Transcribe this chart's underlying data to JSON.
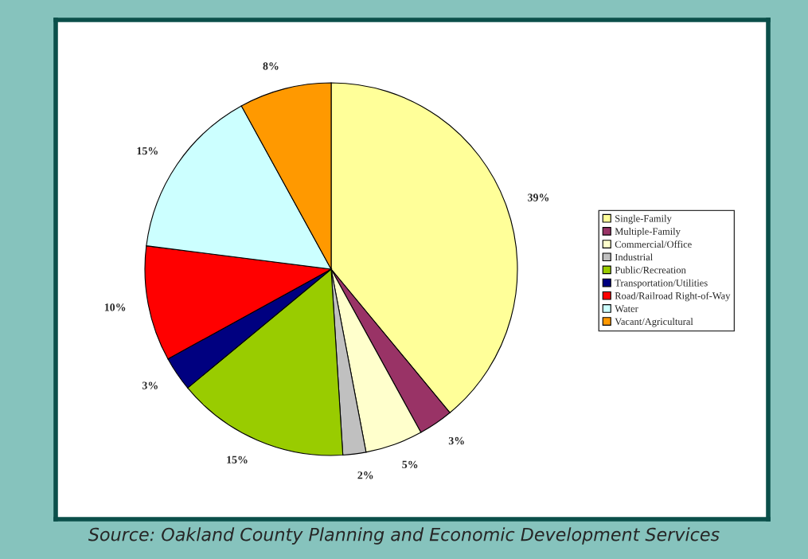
{
  "chart_data": {
    "type": "pie",
    "categories": [
      "Single-Family",
      "Multiple-Family",
      "Commercial/Office",
      "Industrial",
      "Public/Recreation",
      "Transportation/Utilities",
      "Road/Railroad Right-of-Way",
      "Water",
      "Vacant/Agricultural"
    ],
    "values": [
      39,
      3,
      5,
      2,
      15,
      3,
      10,
      15,
      8
    ],
    "colors": [
      "#ffff99",
      "#993366",
      "#ffffcc",
      "#c0c0c0",
      "#99cc00",
      "#000080",
      "#ff0000",
      "#ccffff",
      "#ff9900"
    ],
    "value_labels": [
      "39%",
      "3%",
      "5%",
      "2%",
      "15%",
      "3%",
      "10%",
      "15%",
      "8%"
    ],
    "legend": "right",
    "annotations": [
      "Source: Oakland County Planning and Economic Development Services"
    ]
  }
}
